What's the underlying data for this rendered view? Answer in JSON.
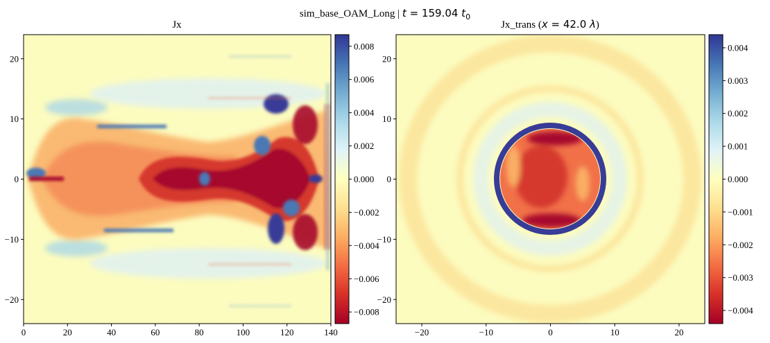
{
  "figure": {
    "suptitle_prefix": "sim_base_OAM_Long | ",
    "suptitle_t": "t",
    "suptitle_eq": " = 159.04 ",
    "suptitle_t0": "t",
    "suptitle_sub": "0"
  },
  "colors": {
    "cmap_RdYlBu": [
      "#a50026",
      "#d73027",
      "#f46d43",
      "#fdae61",
      "#fee090",
      "#ffffbf",
      "#e0f3f8",
      "#abd9e9",
      "#74add1",
      "#4575b4",
      "#313695"
    ]
  },
  "chart_data": [
    {
      "type": "heatmap",
      "title": "Jx",
      "xlabel": "",
      "ylabel": "",
      "xlim": [
        0,
        140
      ],
      "ylim": [
        -24,
        24
      ],
      "xticks": [
        "0",
        "20",
        "40",
        "60",
        "80",
        "100",
        "120",
        "140"
      ],
      "yticks": [
        "20",
        "10",
        "0",
        "−10",
        "−20"
      ],
      "colormap": "RdYlBu",
      "colorbar": {
        "vmin": -0.0087,
        "vmax": 0.0087,
        "ticks": [
          "0.008",
          "0.006",
          "0.004",
          "0.002",
          "0.000",
          "−0.002",
          "−0.004",
          "−0.006",
          "−0.008"
        ],
        "tick_values": [
          0.008,
          0.006,
          0.004,
          0.002,
          0.0,
          -0.002,
          -0.004,
          -0.006,
          -0.008
        ]
      }
    },
    {
      "type": "heatmap",
      "title_prefix": "Jx_trans (",
      "title_x": "x",
      "title_eq": " = 42.0 ",
      "title_lambda": "λ",
      "title_suffix": ")",
      "xlabel": "",
      "ylabel": "",
      "xlim": [
        -24,
        24
      ],
      "ylim": [
        -24,
        24
      ],
      "xticks": [
        "−20",
        "−10",
        "0",
        "10",
        "20"
      ],
      "yticks": [
        "20",
        "10",
        "0",
        "−10",
        "−20"
      ],
      "colormap": "RdYlBu",
      "colorbar": {
        "vmin": -0.0044,
        "vmax": 0.0044,
        "ticks": [
          "0.004",
          "0.003",
          "0.002",
          "0.001",
          "0.000",
          "−0.001",
          "−0.002",
          "−0.003",
          "−0.004"
        ],
        "tick_values": [
          0.004,
          0.003,
          0.002,
          0.001,
          0.0,
          -0.001,
          -0.002,
          -0.003,
          -0.004
        ]
      }
    }
  ]
}
